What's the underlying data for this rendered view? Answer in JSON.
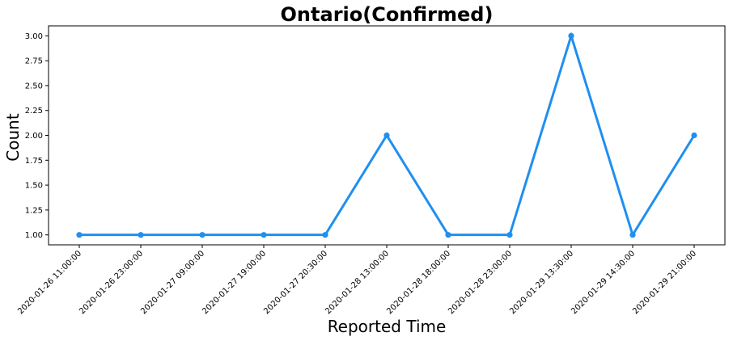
{
  "chart_data": {
    "type": "line",
    "title": "Ontario(Confirmed)",
    "xlabel": "Reported Time",
    "ylabel": "Count",
    "categories": [
      "2020-01-26 11:00:00",
      "2020-01-26 23:00:00",
      "2020-01-27 09:00:00",
      "2020-01-27 19:00:00",
      "2020-01-27 20:30:00",
      "2020-01-28 13:00:00",
      "2020-01-28 18:00:00",
      "2020-01-28 23:00:00",
      "2020-01-29 13:30:00",
      "2020-01-29 14:30:00",
      "2020-01-29 21:00:00"
    ],
    "series": [
      {
        "values": [
          1,
          1,
          1,
          1,
          1,
          2,
          1,
          1,
          3,
          1,
          2
        ],
        "color": "#1f8ff0"
      }
    ],
    "ylim": [
      0.9,
      3.1
    ],
    "yticks": [
      "1.00",
      "1.25",
      "1.50",
      "1.75",
      "2.00",
      "2.25",
      "2.50",
      "2.75",
      "3.00"
    ],
    "grid": false,
    "legend": "none"
  }
}
